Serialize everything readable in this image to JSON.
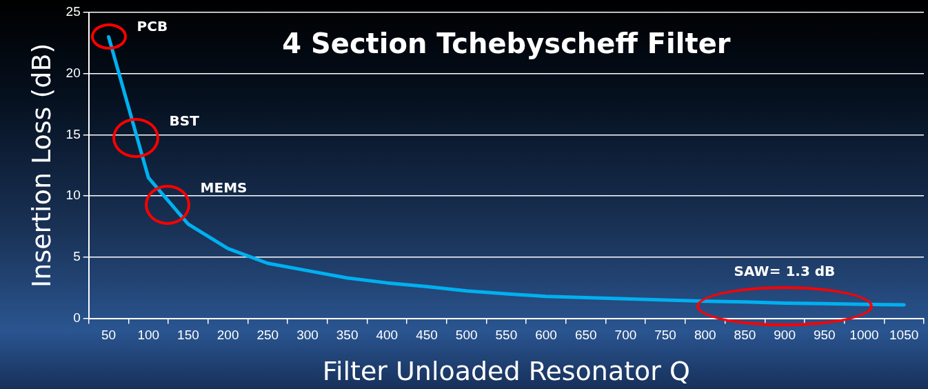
{
  "chart_data": {
    "type": "line",
    "title": "4 Section Tchebyscheff Filter",
    "xlabel": "Filter Unloaded Resonator Q",
    "ylabel": "Insertion Loss (dB)",
    "categories": [
      "50",
      "100",
      "150",
      "200",
      "250",
      "300",
      "350",
      "400",
      "450",
      "500",
      "550",
      "600",
      "650",
      "700",
      "750",
      "800",
      "850",
      "900",
      "950",
      "1000",
      "1050"
    ],
    "series": [
      {
        "color": "#00b0f0",
        "values": [
          23,
          11.5,
          7.7,
          5.7,
          4.5,
          3.9,
          3.3,
          2.9,
          2.6,
          2.25,
          2.0,
          1.8,
          1.7,
          1.6,
          1.5,
          1.4,
          1.35,
          1.25,
          1.2,
          1.15,
          1.1
        ]
      }
    ],
    "ylim": [
      0,
      25
    ],
    "yticks": [
      0,
      5,
      10,
      15,
      20,
      25
    ],
    "grid": "y",
    "legend": false,
    "marker": "none",
    "line_style": "solid",
    "annotations": [
      {
        "text": "PCB",
        "x": "50",
        "y": 23
      },
      "BST",
      "MEMS",
      {
        "text": "SAW= 1.3 dB",
        "x": "900",
        "y": 1
      }
    ]
  }
}
